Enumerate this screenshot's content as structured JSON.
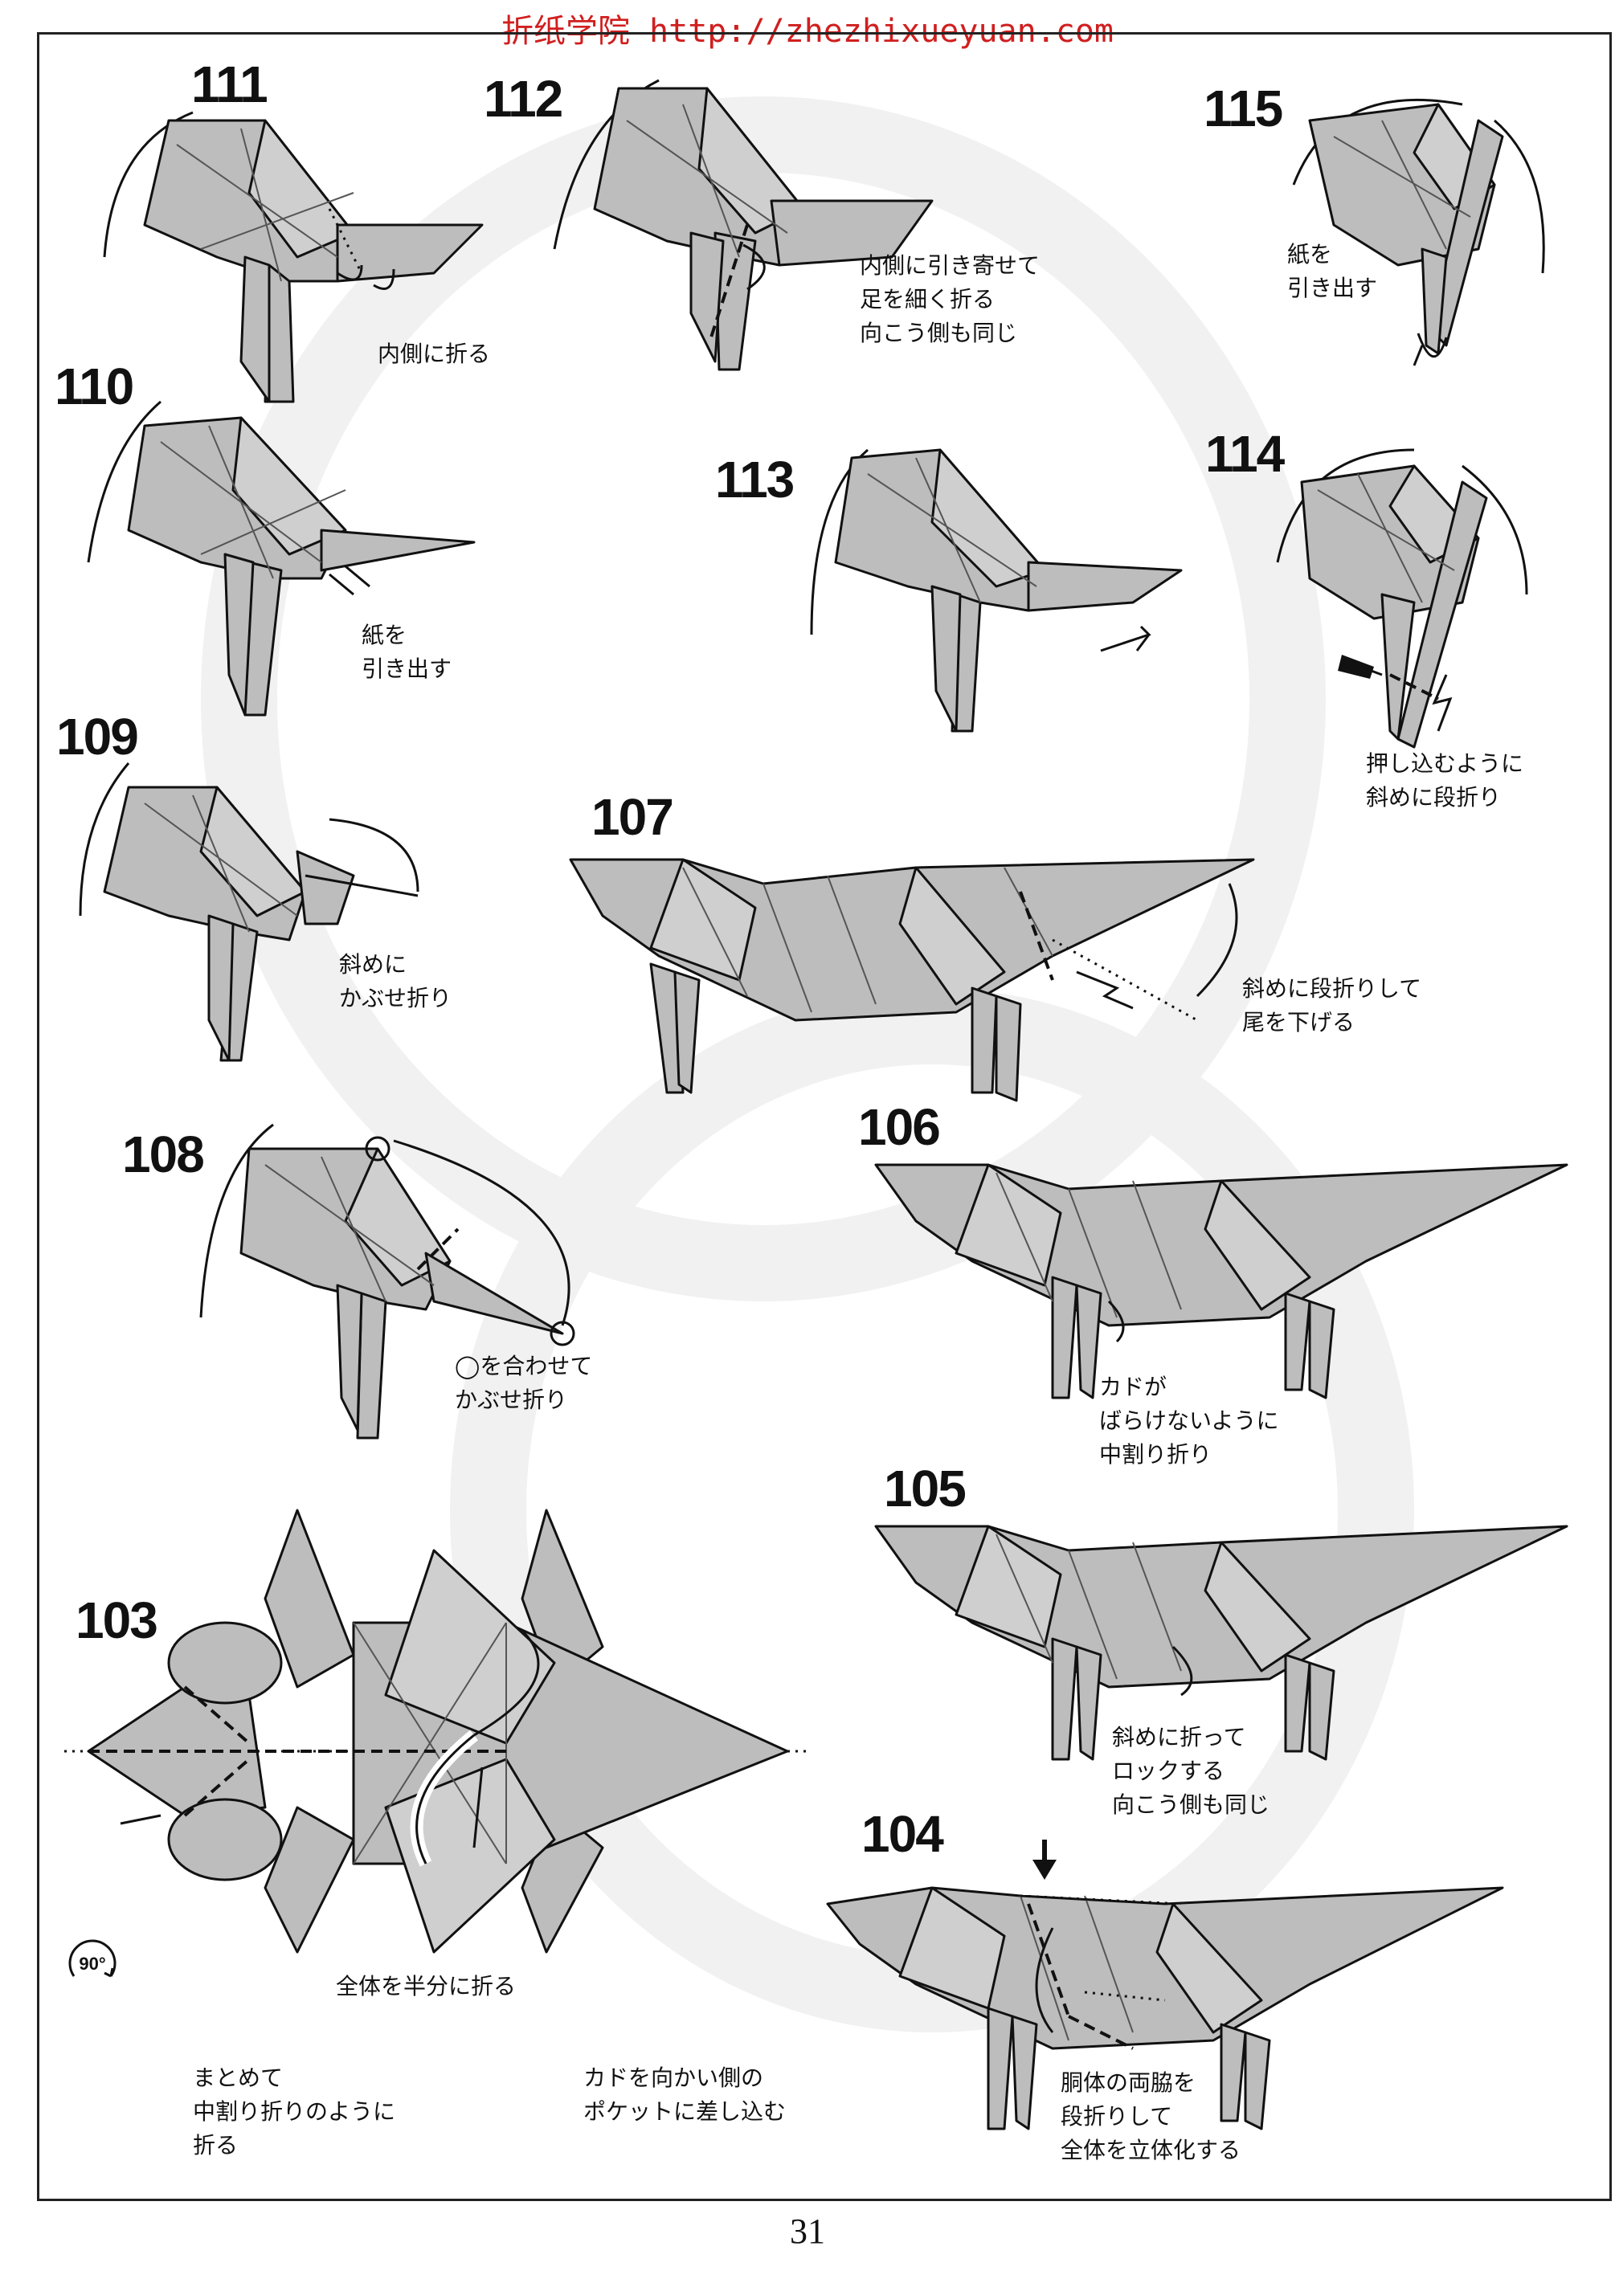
{
  "watermark": "折纸学院 http://zhezhixueyuan.com",
  "page_number": "31",
  "rotate_badge": "90°",
  "steps": [
    {
      "num": "111",
      "caption": [
        "内側に折る"
      ]
    },
    {
      "num": "112",
      "caption": [
        "内側に引き寄せて",
        "足を細く折る",
        "向こう側も同じ"
      ]
    },
    {
      "num": "115",
      "caption": [
        "紙を",
        "引き出す"
      ]
    },
    {
      "num": "110",
      "caption": [
        "紙を",
        "引き出す"
      ]
    },
    {
      "num": "113",
      "caption": []
    },
    {
      "num": "114",
      "caption": [
        "押し込むように",
        "斜めに段折り"
      ]
    },
    {
      "num": "109",
      "caption": [
        "斜めに",
        "かぶせ折り"
      ]
    },
    {
      "num": "107",
      "caption": [
        "斜めに段折りして",
        "尾を下げる"
      ]
    },
    {
      "num": "108",
      "caption": [
        "◯を合わせて",
        "かぶせ折り"
      ]
    },
    {
      "num": "106",
      "caption": [
        "カドが",
        "ばらけないように",
        "中割り折り"
      ]
    },
    {
      "num": "103",
      "caption": []
    },
    {
      "num": "105",
      "caption": [
        "斜めに折って",
        "ロックする",
        "向こう側も同じ"
      ]
    },
    {
      "num": "104",
      "caption": [
        "胴体の両脇を",
        "段折りして",
        "全体を立体化する"
      ]
    }
  ],
  "step103_notes": {
    "fold_half": "全体を半分に折る",
    "collapse": [
      "まとめて",
      "中割り折りのように",
      "折る"
    ],
    "insert": [
      "カドを向かい側の",
      "ポケットに差し込む"
    ]
  }
}
